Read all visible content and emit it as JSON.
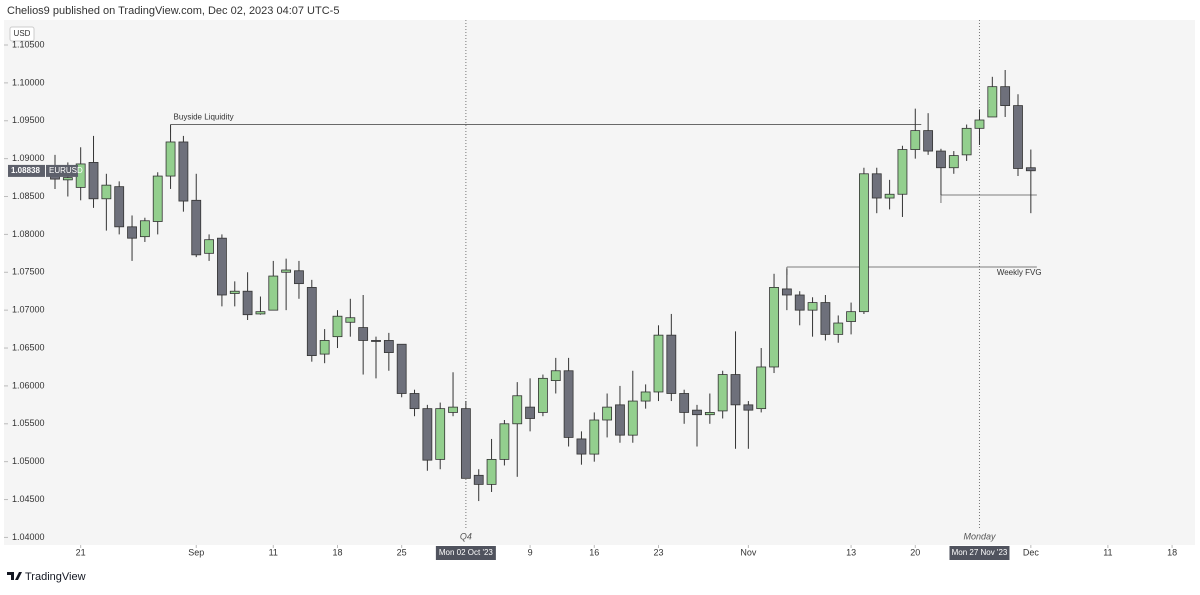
{
  "header": "Chelios9 published on TradingView.com, Dec 02, 2023 04:07 UTC-5",
  "footer": "TradingView",
  "chart_data": {
    "type": "candlestick",
    "currency": "USD",
    "symbol": "EURUSD",
    "last_price": {
      "value": 1.08838,
      "label": "1.08838"
    },
    "up_color": "#93cf8e",
    "down_color": "#6e707b",
    "ylim": [
      1.039,
      1.1083
    ],
    "yticks": [
      {
        "value": 1.04,
        "label": "1.04000"
      },
      {
        "value": 1.045,
        "label": "1.04500"
      },
      {
        "value": 1.05,
        "label": "1.05000"
      },
      {
        "value": 1.055,
        "label": "1.05500"
      },
      {
        "value": 1.06,
        "label": "1.06000"
      },
      {
        "value": 1.065,
        "label": "1.06500"
      },
      {
        "value": 1.07,
        "label": "1.07000"
      },
      {
        "value": 1.075,
        "label": "1.07500"
      },
      {
        "value": 1.08,
        "label": "1.08000"
      },
      {
        "value": 1.085,
        "label": "1.08500"
      },
      {
        "value": 1.09,
        "label": "1.09000"
      },
      {
        "value": 1.095,
        "label": "1.09500"
      },
      {
        "value": 1.1,
        "label": "1.10000"
      },
      {
        "value": 1.105,
        "label": "1.10500"
      }
    ],
    "xticks": [
      {
        "value": "2023-08-21",
        "label": "21"
      },
      {
        "value": "2023-09-01",
        "label": "Sep"
      },
      {
        "value": "2023-09-11",
        "label": "11"
      },
      {
        "value": "2023-09-18",
        "label": "18"
      },
      {
        "value": "2023-09-25",
        "label": "25"
      },
      {
        "value": "2023-10-09",
        "label": "9"
      },
      {
        "value": "2023-10-16",
        "label": "16"
      },
      {
        "value": "2023-10-23",
        "label": "23"
      },
      {
        "value": "2023-11-01",
        "label": "Nov"
      },
      {
        "value": "2023-11-13",
        "label": "13"
      },
      {
        "value": "2023-11-20",
        "label": "20"
      },
      {
        "value": "2023-12-01",
        "label": "Dec"
      },
      {
        "value": "2023-12-11",
        "label": "11"
      },
      {
        "value": "2023-12-18",
        "label": "18"
      }
    ],
    "markers": [
      {
        "x": "2023-10-02",
        "label": "Q4",
        "axis_label": "Mon 02 Oct '23"
      },
      {
        "x": "2023-11-27",
        "label": "Monday",
        "axis_label": "Mon 27 Nov '23"
      }
    ],
    "levels": [
      {
        "text": "Buyside Liquidity",
        "value": 1.0945,
        "x0": "2023-08-30",
        "x1": "2023-11-20"
      },
      {
        "text": "Weekly FVG",
        "value": 1.0757,
        "x0": "2023-11-06",
        "x1": "2023-12-01"
      },
      {
        "value": 1.0852,
        "x0": "2023-11-22",
        "x1": "2023-12-01"
      }
    ],
    "x": [
      "2023-08-17",
      "2023-08-18",
      "2023-08-21",
      "2023-08-22",
      "2023-08-23",
      "2023-08-24",
      "2023-08-25",
      "2023-08-28",
      "2023-08-29",
      "2023-08-30",
      "2023-08-31",
      "2023-09-01",
      "2023-09-04",
      "2023-09-05",
      "2023-09-06",
      "2023-09-07",
      "2023-09-08",
      "2023-09-11",
      "2023-09-12",
      "2023-09-13",
      "2023-09-14",
      "2023-09-15",
      "2023-09-18",
      "2023-09-19",
      "2023-09-20",
      "2023-09-21",
      "2023-09-22",
      "2023-09-25",
      "2023-09-26",
      "2023-09-27",
      "2023-09-28",
      "2023-09-29",
      "2023-10-02",
      "2023-10-03",
      "2023-10-04",
      "2023-10-05",
      "2023-10-06",
      "2023-10-09",
      "2023-10-10",
      "2023-10-11",
      "2023-10-12",
      "2023-10-13",
      "2023-10-16",
      "2023-10-17",
      "2023-10-18",
      "2023-10-19",
      "2023-10-20",
      "2023-10-23",
      "2023-10-24",
      "2023-10-25",
      "2023-10-26",
      "2023-10-27",
      "2023-10-30",
      "2023-10-31",
      "2023-11-01",
      "2023-11-02",
      "2023-11-03",
      "2023-11-06",
      "2023-11-07",
      "2023-11-08",
      "2023-11-09",
      "2023-11-10",
      "2023-11-13",
      "2023-11-14",
      "2023-11-15",
      "2023-11-16",
      "2023-11-17",
      "2023-11-20",
      "2023-11-21",
      "2023-11-22",
      "2023-11-23",
      "2023-11-24",
      "2023-11-27",
      "2023-11-28",
      "2023-11-29",
      "2023-11-30",
      "2023-12-01"
    ],
    "open": [
      1.0883,
      1.0872,
      1.0862,
      1.0895,
      1.0847,
      1.0863,
      1.081,
      1.0797,
      1.0817,
      1.0877,
      1.0922,
      1.0845,
      1.0775,
      1.0795,
      1.0722,
      1.0725,
      1.0695,
      1.07,
      1.075,
      1.0752,
      1.073,
      1.0642,
      1.0665,
      1.0684,
      1.0677,
      1.066,
      1.066,
      1.0655,
      1.059,
      1.057,
      1.0503,
      1.0565,
      1.057,
      1.0482,
      1.047,
      1.0503,
      1.055,
      1.0572,
      1.0565,
      1.0607,
      1.062,
      1.053,
      1.051,
      1.0555,
      1.0575,
      1.0535,
      1.058,
      1.0592,
      1.0667,
      1.059,
      1.0568,
      1.0562,
      1.0567,
      1.0615,
      1.0575,
      1.057,
      1.0625,
      1.0728,
      1.072,
      1.07,
      1.071,
      1.0668,
      1.0685,
      1.0698,
      1.088,
      1.0848,
      1.0853,
      1.0912,
      1.0937,
      1.091,
      1.0888,
      1.0905,
      1.094,
      1.0955,
      1.0995,
      1.097,
      1.0888
    ],
    "high": [
      1.0905,
      1.0895,
      1.0915,
      1.093,
      1.088,
      1.087,
      1.0825,
      1.0822,
      1.0882,
      1.0945,
      1.093,
      1.088,
      1.08,
      1.08,
      1.0738,
      1.075,
      1.0718,
      1.0765,
      1.0768,
      1.0765,
      1.074,
      1.0675,
      1.07,
      1.0715,
      1.072,
      1.0665,
      1.067,
      1.0655,
      1.0595,
      1.0575,
      1.0578,
      1.0618,
      1.058,
      1.049,
      1.053,
      1.0555,
      1.0605,
      1.061,
      1.0615,
      1.0637,
      1.0637,
      1.054,
      1.0565,
      1.059,
      1.06,
      1.062,
      1.0602,
      1.068,
      1.0695,
      1.0595,
      1.0575,
      1.059,
      1.062,
      1.0672,
      1.058,
      1.065,
      1.0748,
      1.0755,
      1.0725,
      1.0717,
      1.072,
      1.0693,
      1.071,
      1.0888,
      1.0888,
      1.0872,
      1.0917,
      1.0966,
      1.096,
      1.0913,
      1.091,
      1.0945,
      1.0965,
      1.1008,
      1.1017,
      1.0985,
      1.0912
    ],
    "low": [
      1.086,
      1.085,
      1.0845,
      1.0835,
      1.0805,
      1.08,
      1.0765,
      1.079,
      1.08,
      1.086,
      1.083,
      1.077,
      1.0765,
      1.0705,
      1.0705,
      1.0687,
      1.0694,
      1.07,
      1.07,
      1.0715,
      1.0632,
      1.063,
      1.065,
      1.0665,
      1.0615,
      1.061,
      1.062,
      1.0585,
      1.056,
      1.0488,
      1.049,
      1.056,
      1.0478,
      1.0448,
      1.046,
      1.0495,
      1.048,
      1.054,
      1.056,
      1.059,
      1.052,
      1.0496,
      1.05,
      1.0532,
      1.0525,
      1.0525,
      1.057,
      1.058,
      1.058,
      1.055,
      1.052,
      1.055,
      1.0557,
      1.0517,
      1.0517,
      1.0565,
      1.0617,
      1.07,
      1.068,
      1.0665,
      1.066,
      1.0657,
      1.0668,
      1.0695,
      1.0828,
      1.0833,
      1.0823,
      1.09,
      1.0905,
      1.0852,
      1.088,
      1.0897,
      1.0918,
      1.0955,
      1.0955,
      1.0877,
      1.0828
    ],
    "close": [
      1.0873,
      1.0875,
      1.0893,
      1.0847,
      1.0865,
      1.081,
      1.0795,
      1.0818,
      1.0877,
      1.0922,
      1.0844,
      1.0773,
      1.0793,
      1.072,
      1.0725,
      1.0694,
      1.0698,
      1.0745,
      1.0753,
      1.0735,
      1.064,
      1.066,
      1.0692,
      1.069,
      1.066,
      1.0659,
      1.0644,
      1.059,
      1.057,
      1.0502,
      1.057,
      1.0572,
      1.0478,
      1.047,
      1.0503,
      1.055,
      1.0587,
      1.0557,
      1.061,
      1.062,
      1.0532,
      1.051,
      1.0555,
      1.0572,
      1.0535,
      1.058,
      1.0592,
      1.0667,
      1.059,
      1.0565,
      1.0562,
      1.0565,
      1.0615,
      1.0575,
      1.0568,
      1.0625,
      1.073,
      1.072,
      1.07,
      1.071,
      1.0668,
      1.0683,
      1.0698,
      1.088,
      1.0848,
      1.0853,
      1.0912,
      1.0937,
      1.091,
      1.0888,
      1.0904,
      1.094,
      1.0951,
      1.0995,
      1.097,
      1.0887,
      1.0884
    ]
  }
}
